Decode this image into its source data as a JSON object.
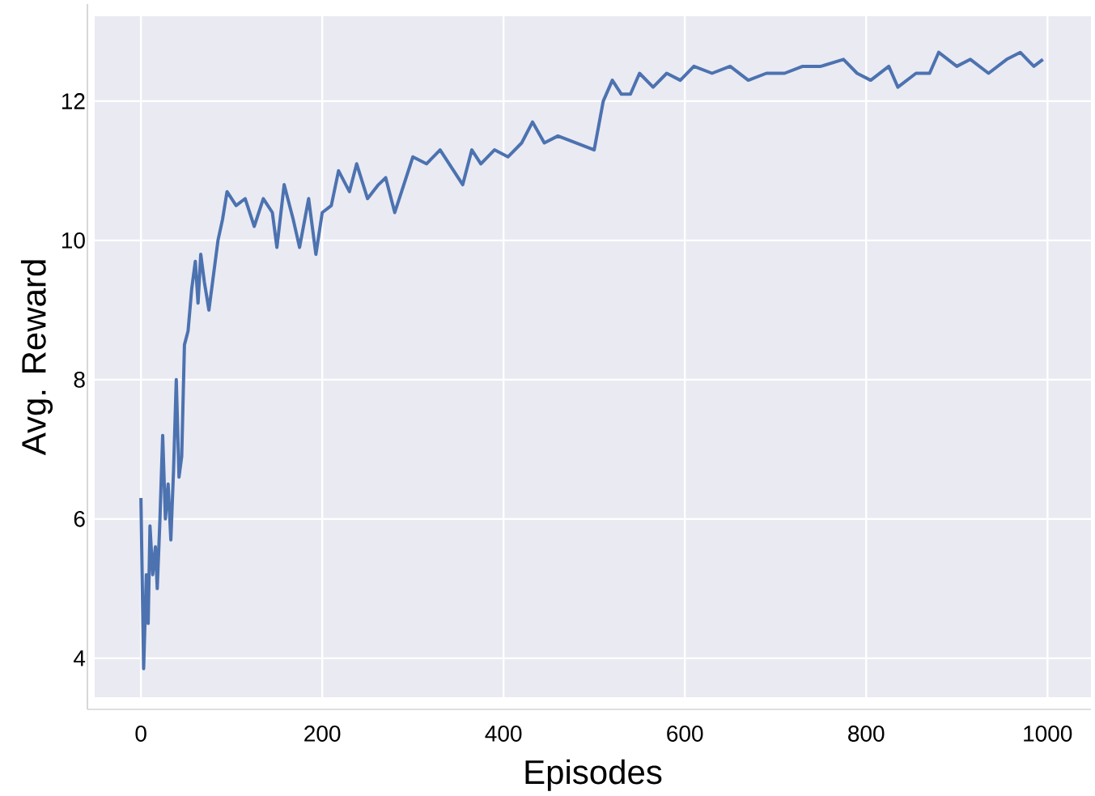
{
  "chart_data": {
    "type": "line",
    "xlabel": "Episodes",
    "ylabel": "Avg. Reward",
    "x": [
      0,
      3,
      6,
      8,
      10,
      13,
      16,
      18,
      21,
      24,
      27,
      30,
      33,
      36,
      39,
      42,
      45,
      48,
      52,
      56,
      60,
      63,
      66,
      70,
      75,
      80,
      85,
      90,
      95,
      105,
      115,
      125,
      135,
      145,
      150,
      158,
      168,
      175,
      185,
      193,
      200,
      210,
      218,
      230,
      238,
      250,
      262,
      270,
      280,
      290,
      300,
      315,
      330,
      345,
      355,
      365,
      375,
      390,
      405,
      420,
      432,
      445,
      460,
      480,
      500,
      510,
      520,
      530,
      540,
      550,
      565,
      580,
      595,
      610,
      630,
      650,
      670,
      690,
      710,
      730,
      750,
      775,
      790,
      805,
      825,
      835,
      855,
      870,
      880,
      900,
      915,
      935,
      955,
      970,
      985,
      995
    ],
    "values": [
      6.3,
      3.85,
      5.2,
      4.5,
      5.9,
      5.2,
      5.6,
      5.0,
      6.0,
      7.2,
      6.0,
      6.5,
      5.7,
      6.7,
      8.0,
      6.6,
      6.9,
      8.5,
      8.7,
      9.3,
      9.7,
      9.1,
      9.8,
      9.4,
      9.0,
      9.5,
      10.0,
      10.3,
      10.7,
      10.5,
      10.6,
      10.2,
      10.6,
      10.4,
      9.9,
      10.8,
      10.3,
      9.9,
      10.6,
      9.8,
      10.4,
      10.5,
      11.0,
      10.7,
      11.1,
      10.6,
      10.8,
      10.9,
      10.4,
      10.8,
      11.2,
      11.1,
      11.3,
      11.0,
      10.8,
      11.3,
      11.1,
      11.3,
      11.2,
      11.4,
      11.7,
      11.4,
      11.5,
      11.4,
      11.3,
      12.0,
      12.3,
      12.1,
      12.1,
      12.4,
      12.2,
      12.4,
      12.3,
      12.5,
      12.4,
      12.5,
      12.3,
      12.4,
      12.4,
      12.5,
      12.5,
      12.6,
      12.4,
      12.3,
      12.5,
      12.2,
      12.4,
      12.4,
      12.7,
      12.5,
      12.6,
      12.4,
      12.6,
      12.7,
      12.5,
      12.6
    ],
    "color": "#4c72b0",
    "xlim": [
      -51,
      1048
    ],
    "ylim": [
      3.44,
      13.22
    ],
    "xticks": [
      0,
      200,
      400,
      600,
      800,
      1000
    ],
    "yticks": [
      4,
      6,
      8,
      10,
      12
    ],
    "grid": true,
    "marker": "none",
    "line_style": "solid"
  }
}
